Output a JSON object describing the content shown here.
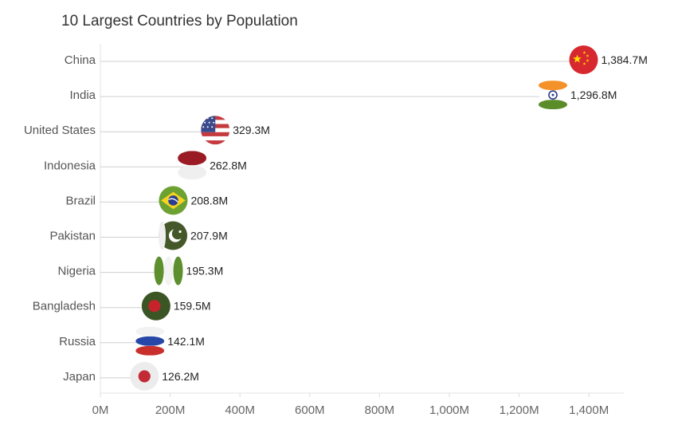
{
  "chart_data": {
    "type": "lollipop",
    "title": "10 Largest Countries by Population",
    "categories": [
      "China",
      "India",
      "United States",
      "Indonesia",
      "Brazil",
      "Pakistan",
      "Nigeria",
      "Bangladesh",
      "Russia",
      "Japan"
    ],
    "values": [
      1384.7,
      1296.8,
      329.3,
      262.8,
      208.8,
      207.9,
      195.3,
      159.5,
      142.1,
      126.2
    ],
    "value_labels": [
      "1,384.7M",
      "1,296.8M",
      "329.3M",
      "262.8M",
      "208.8M",
      "207.9M",
      "195.3M",
      "159.5M",
      "142.1M",
      "126.2M"
    ],
    "flags": [
      "china-flag",
      "india-flag",
      "usa-flag",
      "indonesia-flag",
      "brazil-flag",
      "pakistan-flag",
      "nigeria-flag",
      "bangladesh-flag",
      "russia-flag",
      "japan-flag"
    ],
    "x_ticks": [
      0,
      200,
      400,
      600,
      800,
      1000,
      1200,
      1400
    ],
    "x_tick_labels": [
      "0M",
      "200M",
      "400M",
      "600M",
      "800M",
      "1,000M",
      "1,200M",
      "1,400M"
    ],
    "xlim": [
      0,
      1500
    ],
    "grid": false
  }
}
